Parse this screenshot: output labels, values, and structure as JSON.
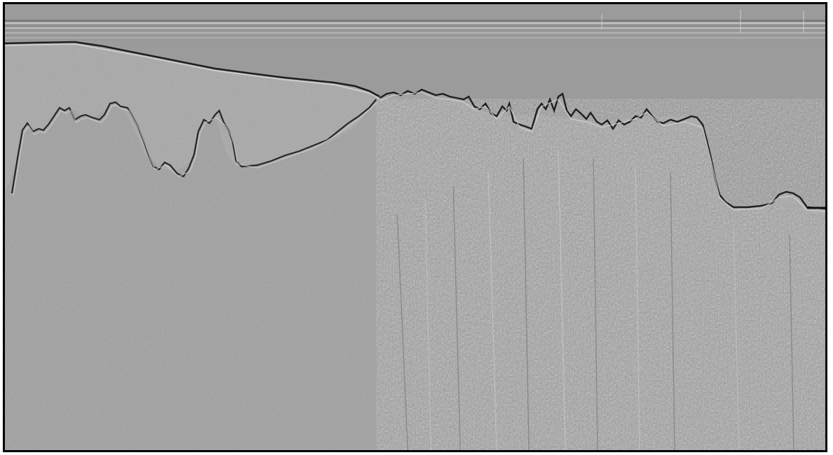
{
  "image": {
    "kind": "grayscale embossed radar / seismic reflection profile",
    "colors": {
      "frame": "#000000",
      "background": "#9a9a9a",
      "upper_zone": "#a3a3a3",
      "textured_zone": "#9c9c9c",
      "reflector": "#1e1e1e",
      "highlight": "#dcdcdc",
      "banding_light": "#bdbdbd",
      "banding_dark": "#7c7c7c"
    },
    "features": [
      "horizontal-banding",
      "sloping-top-reflector",
      "peaked-left-reflector",
      "peaked-right-reflector",
      "right-step-reflector",
      "vertical-streaks"
    ]
  }
}
